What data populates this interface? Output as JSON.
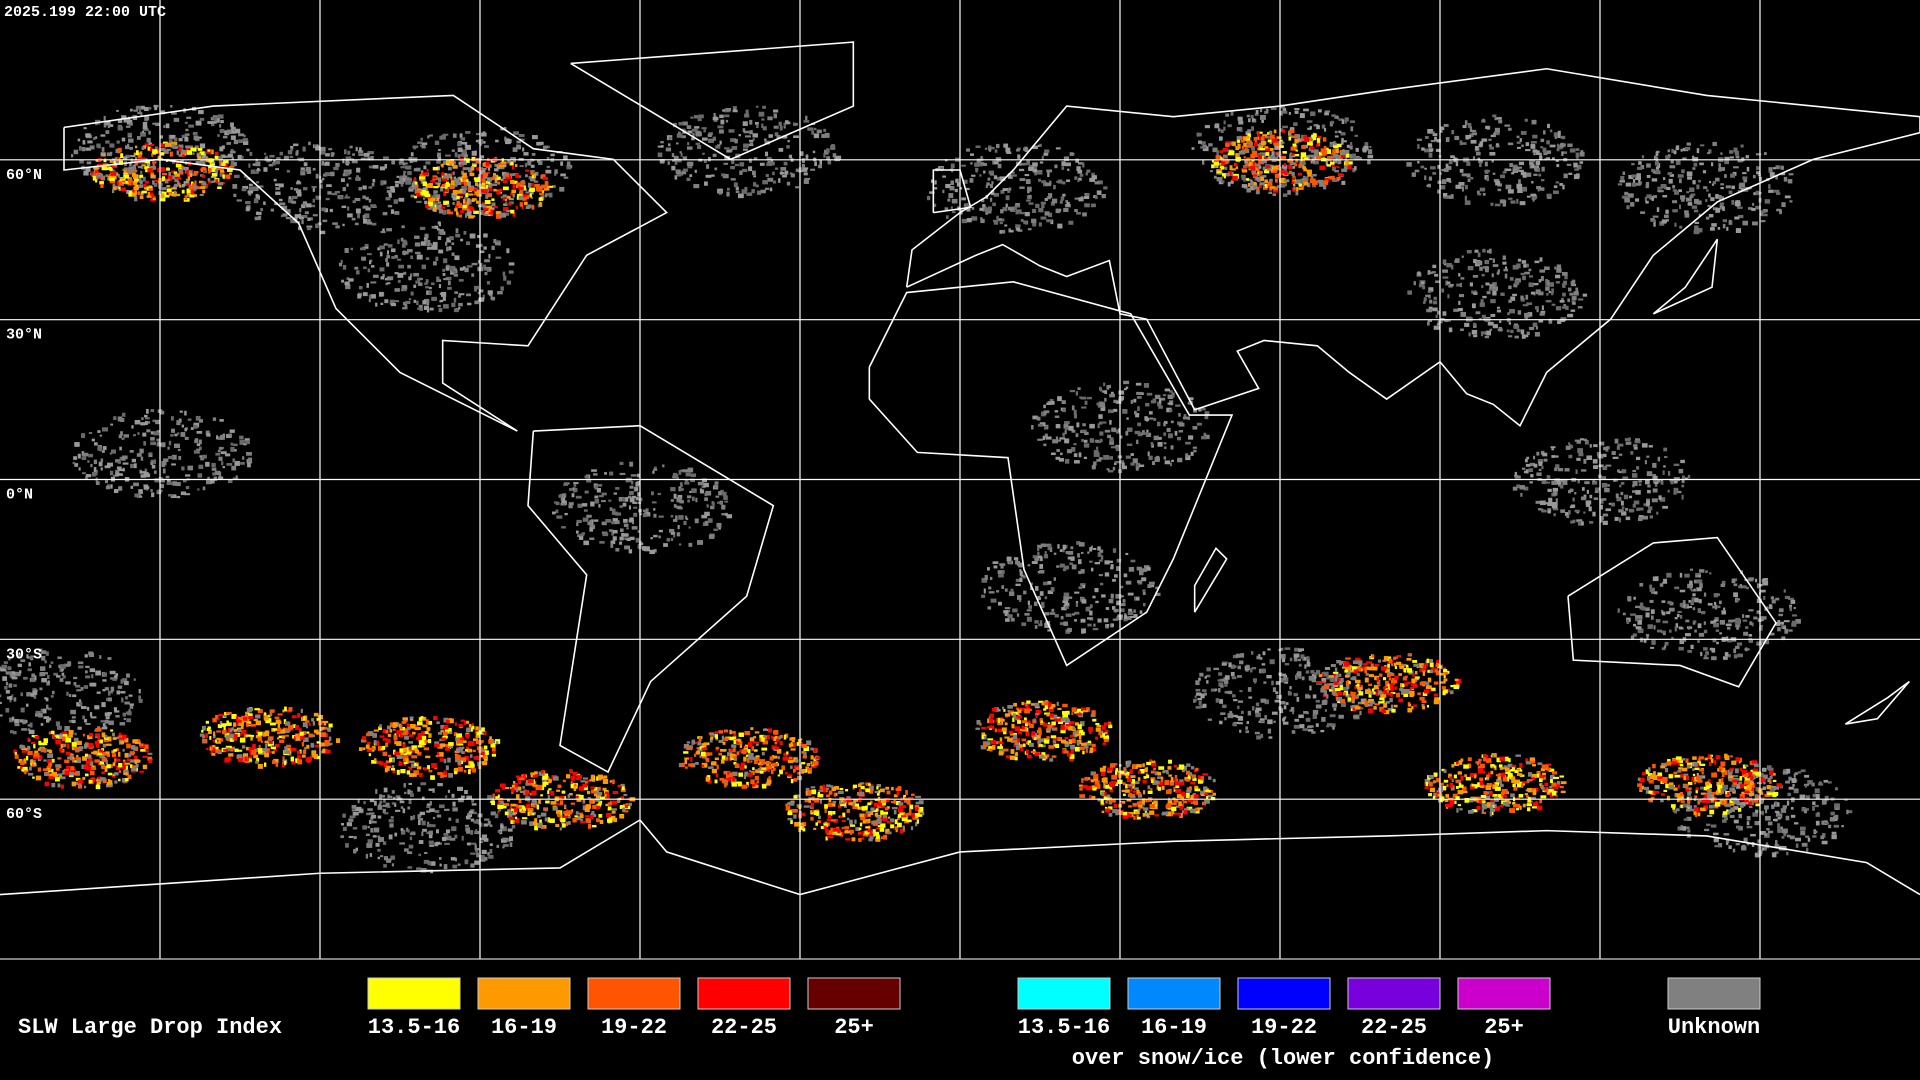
{
  "timestamp": "2025.199 22:00 UTC",
  "map": {
    "latitude_labels": [
      "60°N",
      "30°N",
      "0°N",
      "30°S",
      "60°S"
    ]
  },
  "legend": {
    "title": "SLW Large Drop Index",
    "items": [
      {
        "label": "13.5-16",
        "color": "#ffff00"
      },
      {
        "label": "16-19",
        "color": "#ff9900"
      },
      {
        "label": "19-22",
        "color": "#ff5500"
      },
      {
        "label": "22-25",
        "color": "#ff0000"
      },
      {
        "label": "25+",
        "color": "#660000"
      }
    ],
    "snow_items": [
      {
        "label": "13.5-16",
        "color": "#00ffff"
      },
      {
        "label": "16-19",
        "color": "#0088ff"
      },
      {
        "label": "19-22",
        "color": "#0000ff"
      },
      {
        "label": "22-25",
        "color": "#7700dd"
      },
      {
        "label": "25+",
        "color": "#cc00cc"
      }
    ],
    "snow_note": "over snow/ice (lower confidence)",
    "unknown": {
      "label": "Unknown",
      "color": "#808080"
    }
  }
}
